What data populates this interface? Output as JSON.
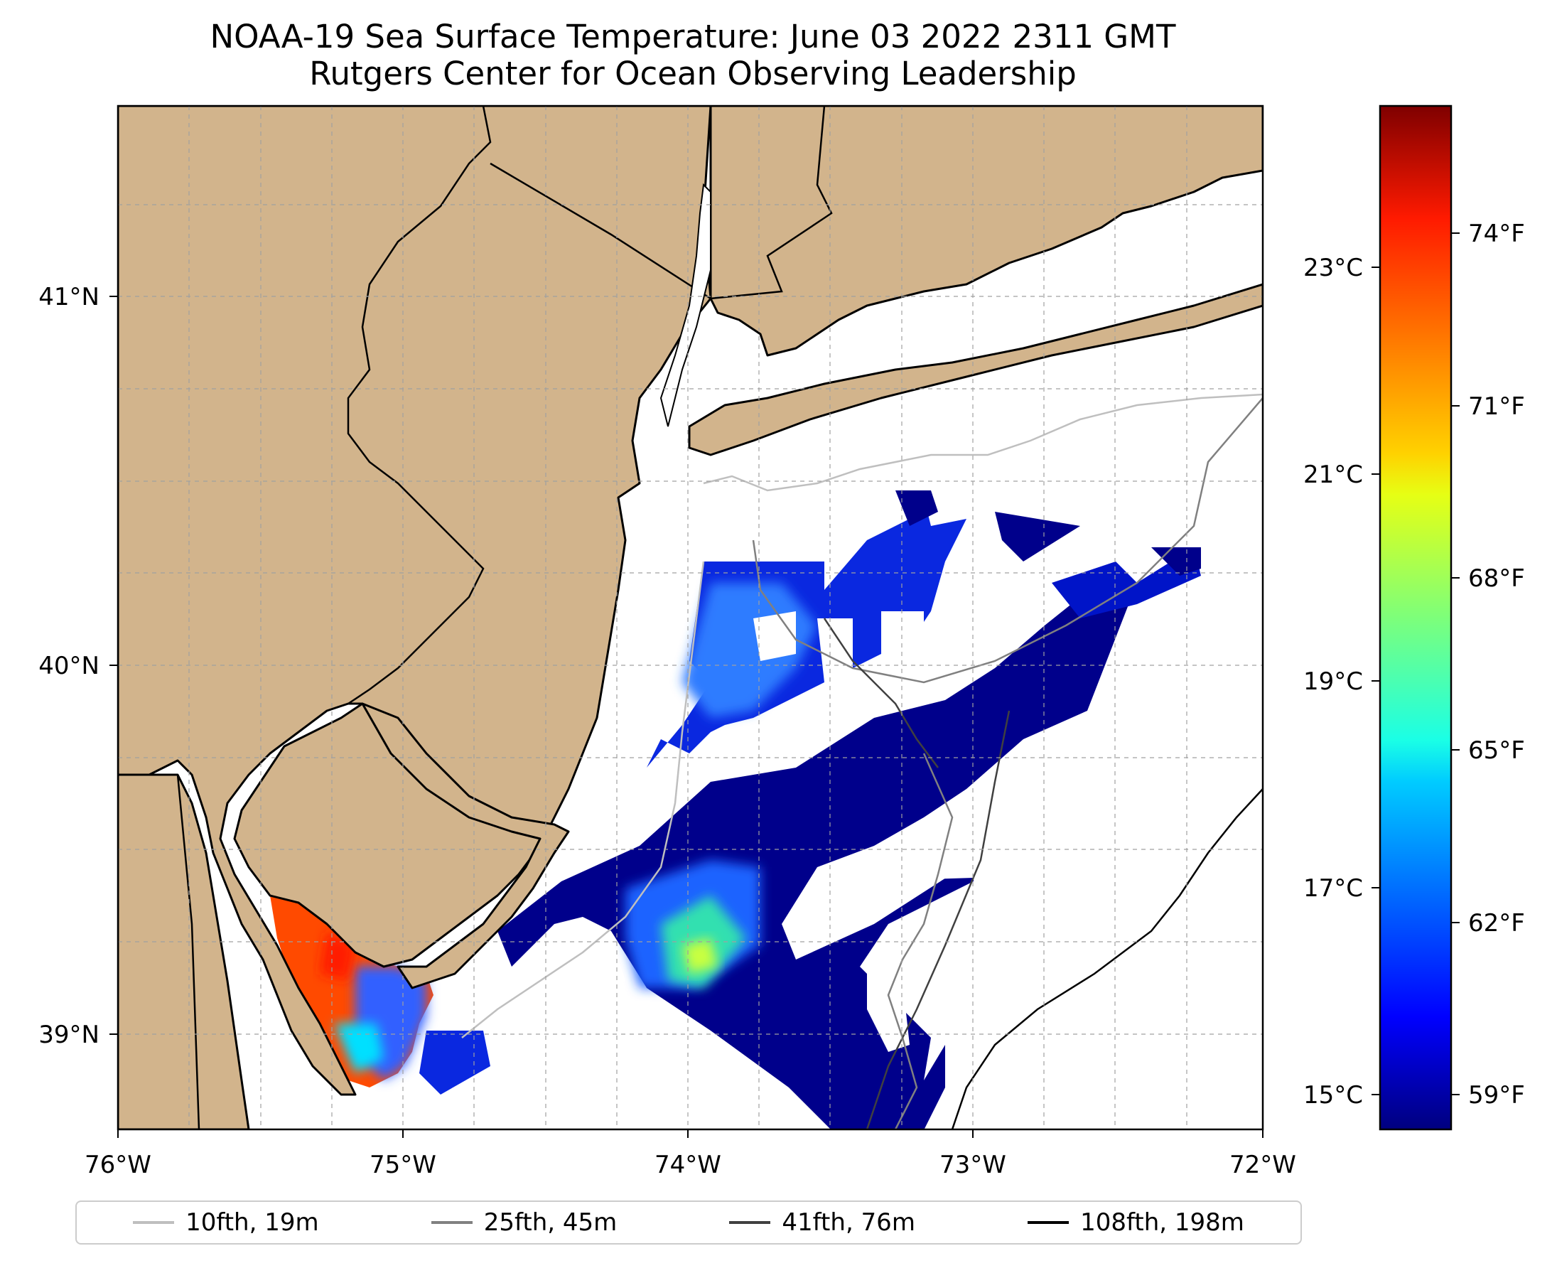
{
  "title": {
    "line1": "NOAA-19 Sea Surface Temperature: June 03 2022 2311 GMT",
    "line2": "Rutgers Center for Ocean Observing Leadership"
  },
  "map": {
    "lon_range": [
      -76.0,
      -72.0
    ],
    "lat_range": [
      38.7,
      41.5
    ],
    "lon_ticks": [
      "76°W",
      "75°W",
      "74°W",
      "73°W",
      "72°W"
    ],
    "lat_ticks": [
      "41°N",
      "40°N",
      "39°N"
    ],
    "land_color": "#d2b48c",
    "grid": true
  },
  "colorbar": {
    "colormap": "jet",
    "celsius_ticks": [
      "15°C",
      "17°C",
      "19°C",
      "21°C",
      "23°C"
    ],
    "fahrenheit_ticks": [
      "59°F",
      "62°F",
      "65°F",
      "68°F",
      "71°F",
      "74°F"
    ],
    "range_f": [
      58,
      76
    ]
  },
  "legend": [
    {
      "label": "10fth, 19m",
      "color": "#bfbfbf"
    },
    {
      "label": "25fth, 45m",
      "color": "#808080"
    },
    {
      "label": "41fth, 76m",
      "color": "#404040"
    },
    {
      "label": "108fth, 198m",
      "color": "#000000"
    }
  ]
}
